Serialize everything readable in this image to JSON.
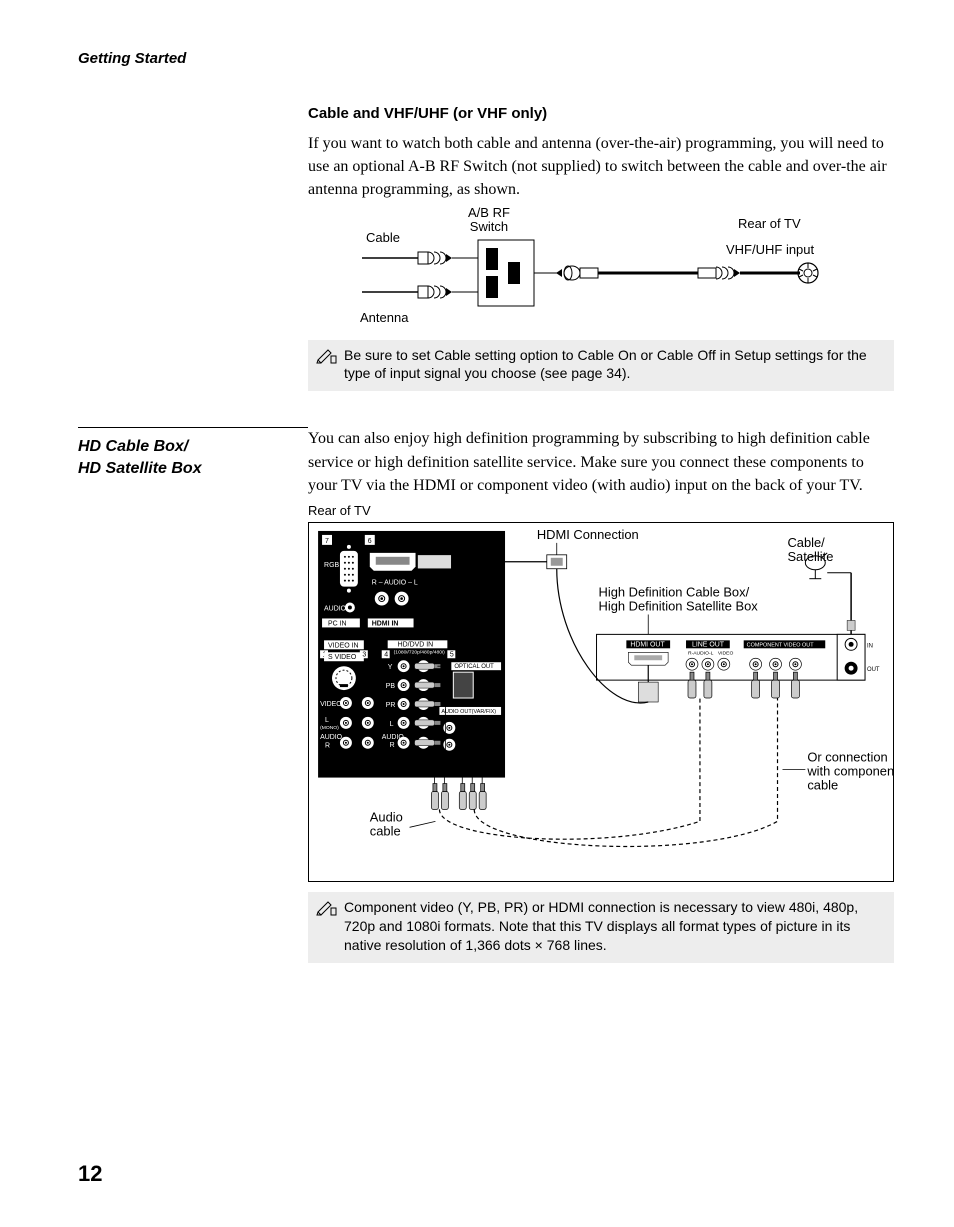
{
  "header": {
    "section": "Getting Started"
  },
  "s1": {
    "heading": "Cable and VHF/UHF (or VHF only)",
    "para": "If you want to watch both cable and antenna (over-the-air) programming, you will need to use an optional A-B RF Switch (not supplied)  to switch between the cable and over-the air antenna programming, as shown.",
    "labels": {
      "abrf1": "A/B RF",
      "abrf2": "Switch",
      "cable": "Cable",
      "antenna": "Antenna",
      "rear": "Rear of TV",
      "vhf": "VHF/UHF input"
    },
    "note": "Be sure to set Cable setting option to Cable On or Cable Off in Setup settings for the type of input signal you choose (see page 34)."
  },
  "s2": {
    "side": "HD Cable Box/\nHD Satellite Box",
    "para": "You can also enjoy high definition programming by subscribing to high definition cable service or high definition satellite service. Make sure you connect these components to your TV via the HDMI or component video (with audio) input on the back of your TV.",
    "rear": "Rear of TV",
    "labels": {
      "hdmi_conn": "HDMI Connection",
      "cabsat1": "Cable/",
      "cabsat2": "Satellite",
      "hd1": "High Definition Cable Box/",
      "hd2": "High Definition Satellite Box",
      "orconn1": "Or connection",
      "orconn2": "with component",
      "orconn3": "cable",
      "audio1": "Audio",
      "audio2": "cable",
      "in": "IN",
      "out": "OUT"
    },
    "panel": {
      "num7": "7",
      "num6": "6",
      "num1": "1",
      "num3": "3",
      "num4": "4",
      "num5": "5",
      "rgb": "RGB",
      "audio": "AUDIO",
      "pcin": "PC IN",
      "hdmi_in": "HDMI  IN",
      "r_audio_l": "R – AUDIO – L",
      "video_in": "VIDEO IN",
      "svideo": "S VIDEO",
      "hddvd": "HD/DVD IN",
      "hddvd2": "(1080i/720p/480p/480i)",
      "video": "VIDEO",
      "lmono": "(MONO)",
      "l": "L",
      "r": "R",
      "y": "Y",
      "pb": "PB",
      "pr": "PR",
      "optical": "OPTICAL OUT",
      "audio_out": "AUDIO OUT(VAR/FIX)",
      "hdmi_out": "HDMI OUT",
      "line_out": "LINE OUT",
      "comp_out": "COMPONENT VIDEO OUT",
      "lo_r": "R-AUDIO-L",
      "lo_v": "VIDEO"
    },
    "note": "Component video (Y, PB, PR) or HDMI connection is necessary to view 480i, 480p, 720p and 1080i formats. Note that this TV displays all format types of picture in its native resolution of 1,366 dots × 768 lines."
  },
  "page_number": "12"
}
